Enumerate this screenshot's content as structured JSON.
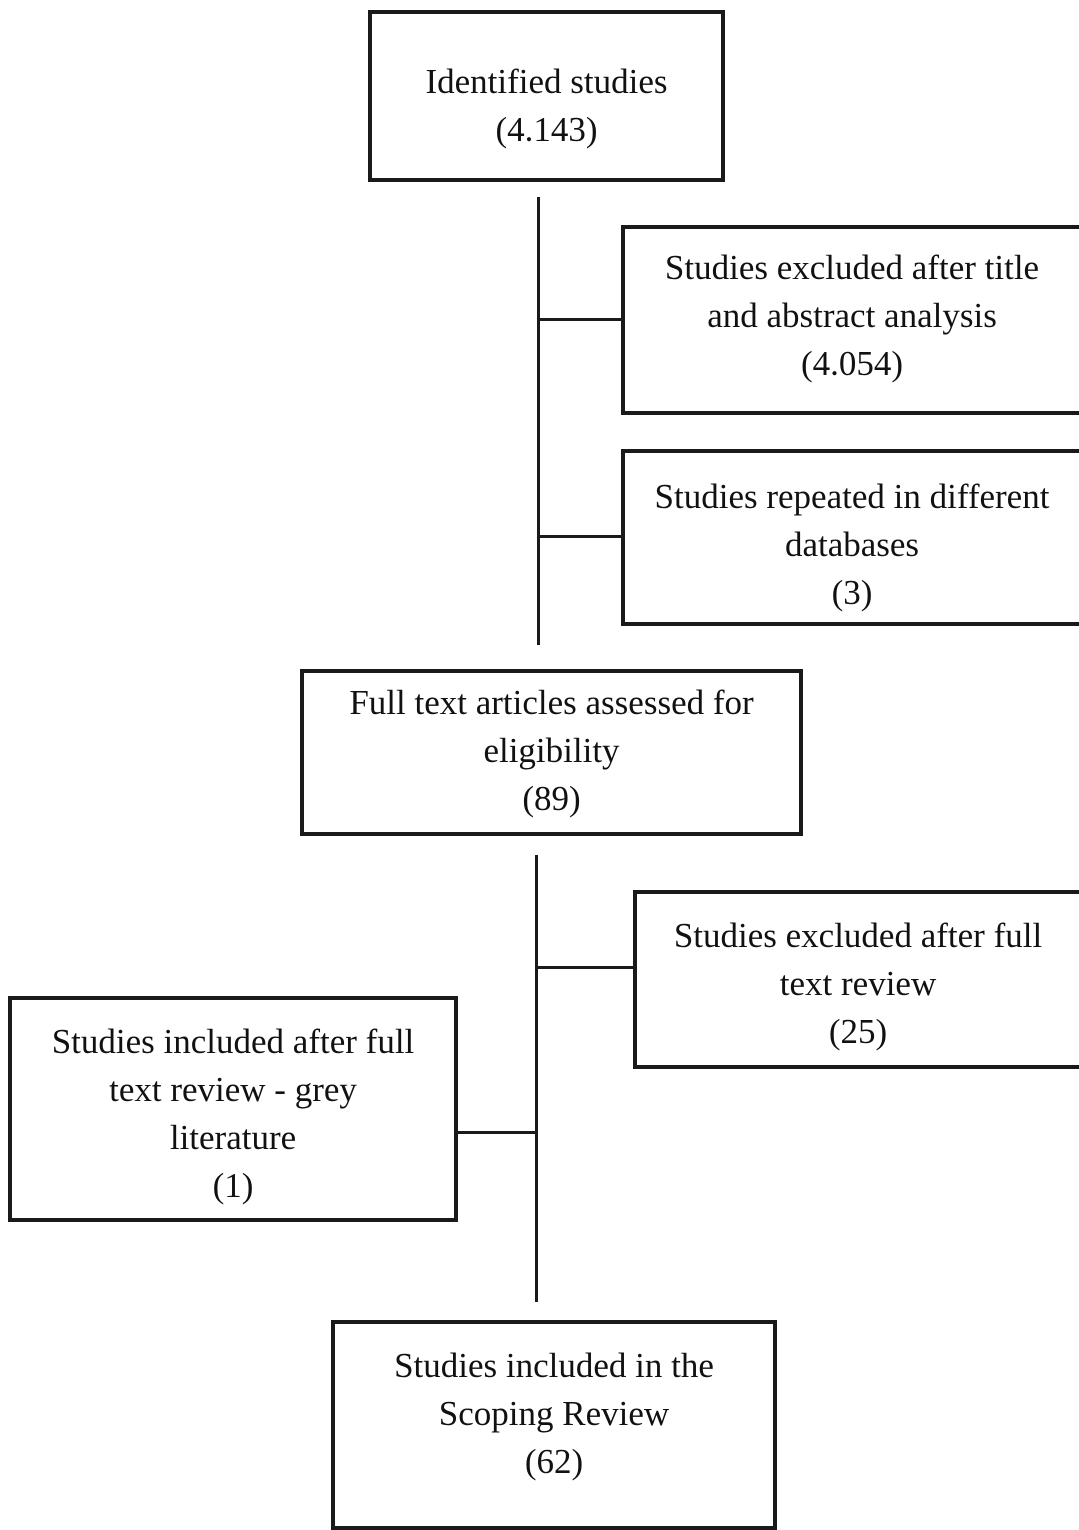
{
  "boxes": {
    "identified": {
      "line1": "Identified studies",
      "count": "(4.143)"
    },
    "excluded_title_abstract": {
      "line1": "Studies excluded after title",
      "line2": "and abstract analysis",
      "count": "(4.054)"
    },
    "repeated": {
      "line1": "Studies repeated in different",
      "line2": "databases",
      "count": "(3)"
    },
    "full_text_assessed": {
      "line1": "Full text articles assessed for",
      "line2": "eligibility",
      "count": "(89)"
    },
    "excluded_full_text": {
      "line1": "Studies excluded after full",
      "line2": "text review",
      "count": "(25)"
    },
    "grey_literature": {
      "line1": "Studies included after full",
      "line2": "text review - grey",
      "line3": "literature",
      "count": "(1)"
    },
    "included": {
      "line1": "Studies included in the",
      "line2": "Scoping Review",
      "count": "(62)"
    }
  }
}
